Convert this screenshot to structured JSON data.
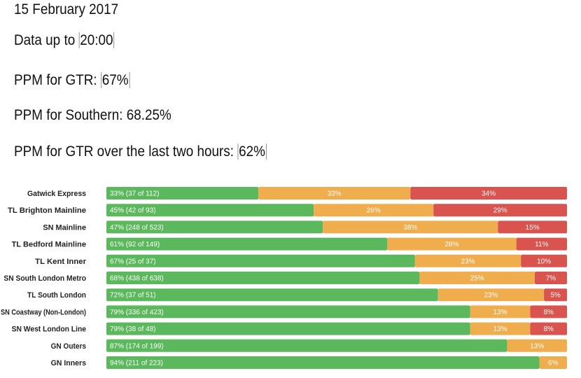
{
  "header": {
    "date": "15 February 2017",
    "data_up_to_label": "Data up to ",
    "data_up_to_value": "20:00",
    "ppm_gtr_label": "PPM for GTR: ",
    "ppm_gtr_value": "67%",
    "ppm_southern_label": "PPM for Southern: ",
    "ppm_southern_value": "68.25%",
    "ppm_two_hours_label": "PPM for GTR over the last two hours: ",
    "ppm_two_hours_value": "62%"
  },
  "colors": {
    "on_time": "#5cb85c",
    "late": "#f0ad4e",
    "very_late": "#d9534f"
  },
  "chart_data": {
    "type": "bar",
    "orientation": "horizontal",
    "stacked": true,
    "normalized_percent": true,
    "categories": [
      "Gatwick Express",
      "TL Brighton Mainline",
      "SN Mainline",
      "TL Bedford Mainline",
      "TL Kent Inner",
      "SN South London Metro",
      "TL South London",
      "SN Coastway (Non-London)",
      "SN West London Line",
      "GN Outers",
      "GN Inners"
    ],
    "series": [
      {
        "name": "on_time",
        "values": [
          33,
          45,
          47,
          61,
          67,
          68,
          72,
          79,
          79,
          87,
          94
        ],
        "labels": [
          "33% (37 of 112)",
          "45% (42 of 93)",
          "47% (248 of 523)",
          "61% (92 of 149)",
          "67% (25 of 37)",
          "68% (438 of 638)",
          "72% (37 of 51)",
          "79% (336 of 423)",
          "79% (38 of 48)",
          "87% (174 of 199)",
          "94% (211 of 223)"
        ]
      },
      {
        "name": "late",
        "values": [
          33,
          26,
          38,
          28,
          23,
          25,
          23,
          13,
          13,
          13,
          6
        ],
        "labels": [
          "33%",
          "26%",
          "38%",
          "28%",
          "23%",
          "25%",
          "23%",
          "13%",
          "13%",
          "13%",
          "6%"
        ]
      },
      {
        "name": "very_late",
        "values": [
          34,
          29,
          15,
          11,
          10,
          7,
          5,
          8,
          8,
          0,
          0
        ],
        "labels": [
          "34%",
          "29%",
          "15%",
          "11%",
          "10%",
          "7%",
          "5%",
          "8%",
          "8%",
          "",
          ""
        ]
      }
    ],
    "xlim": [
      0,
      100
    ]
  }
}
